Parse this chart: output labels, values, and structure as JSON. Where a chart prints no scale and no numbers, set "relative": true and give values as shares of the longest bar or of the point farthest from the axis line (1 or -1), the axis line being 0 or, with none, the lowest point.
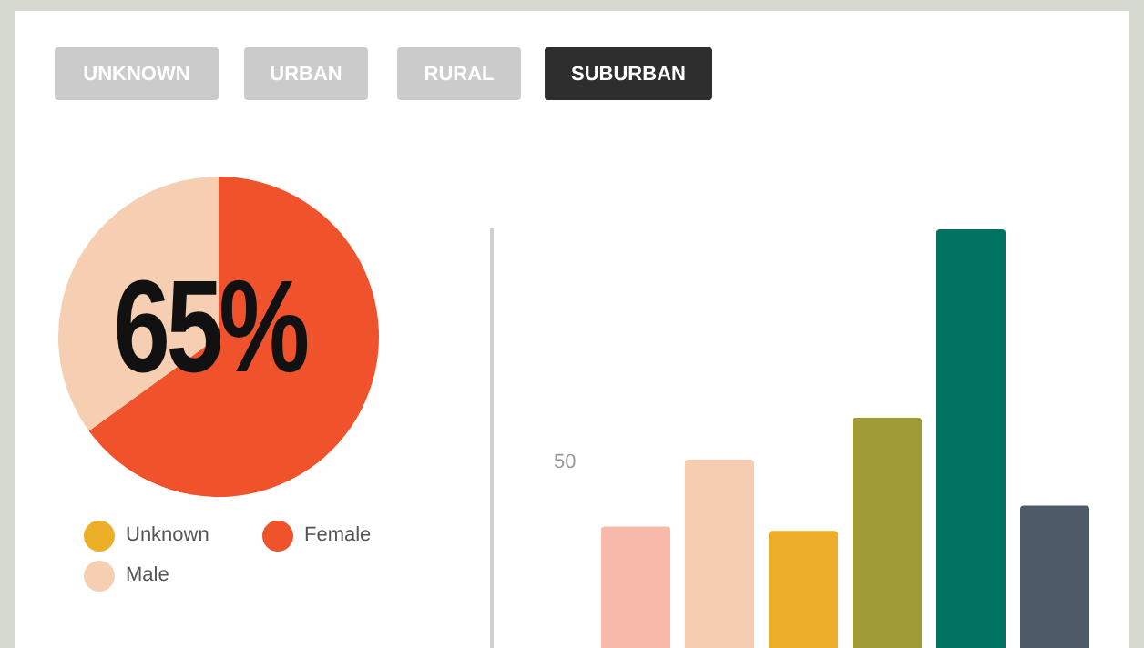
{
  "chart_data": [
    {
      "type": "pie",
      "categories": [
        "Unknown",
        "Female",
        "Male"
      ],
      "values": [
        0,
        65,
        35
      ],
      "colors": [
        "#ecaf28",
        "#f0522c",
        "#f6cfb2"
      ],
      "value_labels": [
        null,
        "65%",
        null
      ],
      "legend": "bottom",
      "annotations": [
        "UNKNOWN",
        "URBAN",
        "RURAL",
        "SUBURBAN"
      ]
    },
    {
      "type": "bar",
      "relative": true,
      "categories": [
        null,
        null,
        null,
        null,
        null,
        null
      ],
      "values": [
        0.29,
        0.45,
        0.28,
        0.55,
        1,
        0.34
      ],
      "colors": [
        "#f8b8aa",
        "#f6cdb0",
        "#ecae28",
        "#a09a36",
        "#007262",
        "#4e5a68"
      ],
      "annotations": [
        "50"
      ]
    }
  ]
}
